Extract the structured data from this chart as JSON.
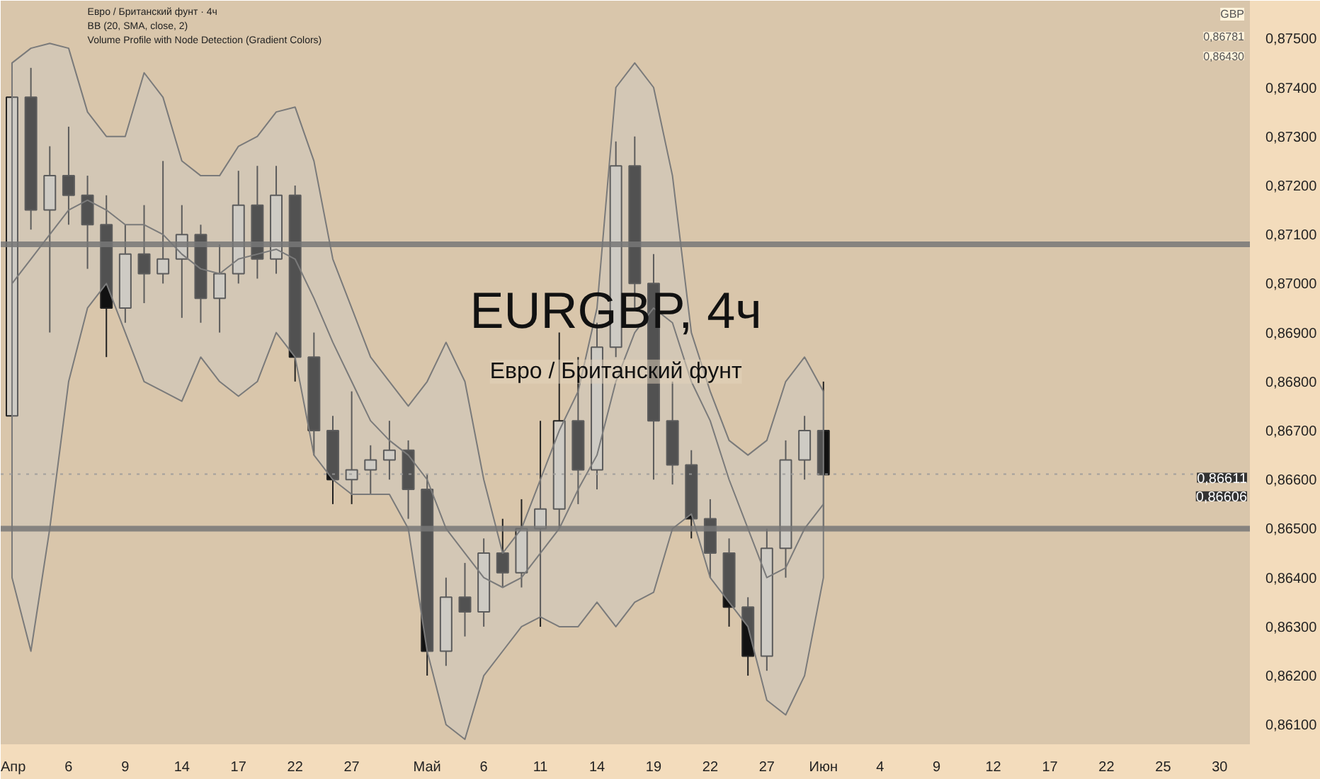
{
  "chart_data": {
    "type": "candlestick",
    "title": "EURGBP, 4ч",
    "subtitle": "Евро / Британский фунт",
    "annotations": [
      "Евро / Британский фунт · 4ч",
      "BB (20, SMA, close, 2)",
      "Volume Profile with Node Detection (Gradient Colors)",
      "GBP",
      "0,86781",
      {
        "text": "0,86611",
        "y": 0.86611
      },
      {
        "text": "0,86606",
        "y": 0.86606
      },
      "0,86430"
    ],
    "categories": [
      "Апр",
      null,
      null,
      "6",
      null,
      null,
      "9",
      null,
      null,
      "14",
      null,
      null,
      "17",
      null,
      null,
      "22",
      null,
      null,
      "27",
      null,
      null,
      null,
      "Май",
      null,
      null,
      "6",
      null,
      null,
      "11",
      null,
      null,
      "14",
      null,
      null,
      "19",
      null,
      null,
      "22",
      null,
      null,
      "27",
      null,
      null,
      "Июн",
      null,
      null,
      "4",
      null,
      null,
      "9",
      null,
      null,
      "12",
      null,
      null,
      "17",
      null,
      null,
      "22",
      null,
      null,
      "25",
      null,
      null,
      "30",
      null
    ],
    "ohlc": [
      [
        0.8673,
        0.8745,
        0.8668,
        0.8738
      ],
      [
        0.8738,
        0.8744,
        0.8711,
        0.8715
      ],
      [
        0.8715,
        0.8728,
        0.869,
        0.8722
      ],
      [
        0.8722,
        0.8732,
        0.8712,
        0.8718
      ],
      [
        0.8718,
        0.8722,
        0.8703,
        0.8712
      ],
      [
        0.8712,
        0.8718,
        0.8685,
        0.8695
      ],
      [
        0.8695,
        0.8712,
        0.8692,
        0.8706
      ],
      [
        0.8706,
        0.8716,
        0.8696,
        0.8702
      ],
      [
        0.8702,
        0.8725,
        0.87,
        0.8705
      ],
      [
        0.8705,
        0.8716,
        0.8693,
        0.871
      ],
      [
        0.871,
        0.8712,
        0.8692,
        0.8697
      ],
      [
        0.8697,
        0.8708,
        0.869,
        0.8702
      ],
      [
        0.8702,
        0.8723,
        0.87,
        0.8716
      ],
      [
        0.8716,
        0.8724,
        0.8701,
        0.8705
      ],
      [
        0.8705,
        0.8724,
        0.8702,
        0.8718
      ],
      [
        0.8718,
        0.872,
        0.868,
        0.8685
      ],
      [
        0.8685,
        0.869,
        0.8665,
        0.867
      ],
      [
        0.867,
        0.8673,
        0.8655,
        0.866
      ],
      [
        0.866,
        0.8678,
        0.8655,
        0.8662
      ],
      [
        0.8662,
        0.8667,
        0.8657,
        0.8664
      ],
      [
        0.8664,
        0.8672,
        0.866,
        0.8666
      ],
      [
        0.8666,
        0.8668,
        0.8652,
        0.8658
      ],
      [
        0.8658,
        0.8661,
        0.862,
        0.8625
      ],
      [
        0.8625,
        0.864,
        0.8622,
        0.8636
      ],
      [
        0.8636,
        0.8643,
        0.8628,
        0.8633
      ],
      [
        0.8633,
        0.8648,
        0.863,
        0.8645
      ],
      [
        0.8645,
        0.8652,
        0.8638,
        0.8641
      ],
      [
        0.8641,
        0.8656,
        0.8638,
        0.865
      ],
      [
        0.865,
        0.8672,
        0.863,
        0.8654
      ],
      [
        0.8654,
        0.869,
        0.865,
        0.8672
      ],
      [
        0.8672,
        0.8685,
        0.8655,
        0.8662
      ],
      [
        0.8662,
        0.8692,
        0.8658,
        0.8687
      ],
      [
        0.8687,
        0.8729,
        0.8685,
        0.8724
      ],
      [
        0.8724,
        0.873,
        0.8695,
        0.87
      ],
      [
        0.87,
        0.8706,
        0.866,
        0.8672
      ],
      [
        0.8672,
        0.868,
        0.8659,
        0.8663
      ],
      [
        0.8663,
        0.8666,
        0.8648,
        0.8652
      ],
      [
        0.8652,
        0.8656,
        0.864,
        0.8645
      ],
      [
        0.8645,
        0.8648,
        0.863,
        0.8634
      ],
      [
        0.8634,
        0.8636,
        0.862,
        0.8624
      ],
      [
        0.8624,
        0.865,
        0.8621,
        0.8646
      ],
      [
        0.8646,
        0.8668,
        0.864,
        0.8664
      ],
      [
        0.8664,
        0.8673,
        0.866,
        0.867
      ],
      [
        0.867,
        0.868,
        0.865,
        0.8661
      ],
      null,
      null,
      null,
      null,
      null,
      null,
      null,
      null,
      null,
      null,
      null,
      null,
      null,
      null,
      null,
      null,
      null,
      null,
      null,
      null,
      null,
      null
    ],
    "series": [
      {
        "type": "line",
        "color": "#7a7a7a",
        "values": [
          0.87,
          0.8705,
          0.871,
          0.8715,
          0.8717,
          0.8715,
          0.8712,
          0.8712,
          0.871,
          0.8706,
          0.8703,
          0.8702,
          0.8705,
          0.8706,
          0.8707,
          0.8705,
          0.8697,
          0.8688,
          0.868,
          0.8672,
          0.8668,
          0.8665,
          0.866,
          0.865,
          0.8645,
          0.864,
          0.8638,
          0.864,
          0.8645,
          0.865,
          0.8658,
          0.8665,
          0.868,
          0.869,
          0.8695,
          0.8692,
          0.868,
          0.8672,
          0.866,
          0.865,
          0.864,
          0.8642,
          0.865,
          0.8655,
          null,
          null,
          null,
          null,
          null,
          null,
          null,
          null,
          null,
          null,
          null,
          null,
          null,
          null,
          null,
          null,
          null,
          null,
          null,
          null,
          null,
          null
        ],
        "upper": [
          0.8745,
          0.8748,
          0.8749,
          0.8748,
          0.8735,
          0.873,
          0.873,
          0.8743,
          0.8738,
          0.8725,
          0.8722,
          0.8722,
          0.8728,
          0.873,
          0.8735,
          0.8736,
          0.8725,
          0.8705,
          0.8695,
          0.8685,
          0.868,
          0.8675,
          0.868,
          0.8688,
          0.868,
          0.866,
          0.8645,
          0.865,
          0.866,
          0.867,
          0.8678,
          0.8695,
          0.874,
          0.8745,
          0.874,
          0.8722,
          0.869,
          0.8678,
          0.8668,
          0.8665,
          0.8668,
          0.868,
          0.8685,
          0.8678,
          null,
          null,
          null,
          null,
          null,
          null,
          null,
          null,
          null,
          null,
          null,
          null,
          null,
          null,
          null,
          null,
          null,
          null,
          null,
          null,
          null,
          null
        ],
        "lower": [
          0.864,
          0.8625,
          0.865,
          0.868,
          0.8695,
          0.87,
          0.869,
          0.868,
          0.8678,
          0.8676,
          0.8685,
          0.868,
          0.8677,
          0.868,
          0.869,
          0.8685,
          0.8665,
          0.866,
          0.8657,
          0.8657,
          0.8657,
          0.865,
          0.8625,
          0.861,
          0.8607,
          0.862,
          0.8625,
          0.863,
          0.8632,
          0.863,
          0.863,
          0.8635,
          0.863,
          0.8635,
          0.8637,
          0.865,
          0.8653,
          0.864,
          0.8635,
          0.863,
          0.8615,
          0.8612,
          0.862,
          0.864,
          null,
          null,
          null,
          null,
          null,
          null,
          null,
          null,
          null,
          null,
          null,
          null,
          null,
          null,
          null,
          null,
          null,
          null,
          null,
          null,
          null,
          null
        ]
      }
    ],
    "ref_lines": [
      {
        "axis": "y",
        "value": 0.8708,
        "color": "#777777"
      },
      {
        "axis": "y",
        "value": 0.865,
        "color": "#777777"
      },
      {
        "axis": "y",
        "value": 0.86611,
        "color": "#999999",
        "line_style": "dotted"
      }
    ],
    "ylim": [
      0.8606,
      0.87577
    ],
    "yticks": [
      {
        "value": 0.861,
        "label": "0,86100"
      },
      {
        "value": 0.862,
        "label": "0,86200"
      },
      {
        "value": 0.863,
        "label": "0,86300"
      },
      {
        "value": 0.864,
        "label": "0,86400"
      },
      {
        "value": 0.865,
        "label": "0,86500"
      },
      {
        "value": 0.866,
        "label": "0,86600"
      },
      {
        "value": 0.867,
        "label": "0,86700"
      },
      {
        "value": 0.868,
        "label": "0,86800"
      },
      {
        "value": 0.869,
        "label": "0,86900"
      },
      {
        "value": 0.87,
        "label": "0,87000"
      },
      {
        "value": 0.871,
        "label": "0,87100"
      },
      {
        "value": 0.872,
        "label": "0,87200"
      },
      {
        "value": 0.873,
        "label": "0,87300"
      },
      {
        "value": 0.874,
        "label": "0,87400"
      },
      {
        "value": 0.875,
        "label": "0,87500"
      }
    ],
    "grid": false
  }
}
